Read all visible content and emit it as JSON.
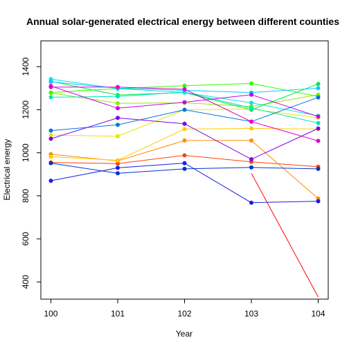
{
  "chart_data": {
    "type": "line",
    "title": "Annual solar-generated electrical energy between different counties",
    "xlabel": "Year",
    "ylabel": "Electrical energy",
    "x": [
      100,
      101,
      102,
      103,
      104
    ],
    "xlim": [
      99.85,
      104.15
    ],
    "ylim": [
      320,
      1520
    ],
    "yticks": [
      400,
      600,
      800,
      1000,
      1200,
      1400
    ],
    "grid": false,
    "legend": "none",
    "series": [
      {
        "color": "#FF0000",
        "values": [
          null,
          null,
          null,
          905,
          330
        ]
      },
      {
        "color": "#FF4000",
        "values": [
          955,
          950,
          988,
          958,
          935
        ]
      },
      {
        "color": "#FF8C00",
        "values": [
          993,
          962,
          1057,
          1057,
          787
        ]
      },
      {
        "color": "#FFCC00",
        "values": [
          982,
          965,
          1110,
          1113,
          1110
        ]
      },
      {
        "color": "#E6E600",
        "values": [
          1082,
          1077,
          1200,
          1203,
          1162
        ]
      },
      {
        "color": "#99E600",
        "values": [
          1278,
          1230,
          1232,
          1215,
          1270
        ]
      },
      {
        "color": "#33FF00",
        "values": [
          1280,
          1298,
          1312,
          1322,
          1262
        ]
      },
      {
        "color": "#00E64D",
        "values": [
          1332,
          1268,
          1280,
          1200,
          1320
        ]
      },
      {
        "color": "#00E6B3",
        "values": [
          1258,
          1262,
          1282,
          1208,
          1138
        ]
      },
      {
        "color": "#00E6E6",
        "values": [
          1342,
          1298,
          1280,
          1232,
          1172
        ]
      },
      {
        "color": "#00CCFF",
        "values": [
          1330,
          1300,
          1290,
          1280,
          1300
        ]
      },
      {
        "color": "#0073E6",
        "values": [
          1103,
          1130,
          1200,
          1145,
          1257
        ]
      },
      {
        "color": "#0033CC",
        "values": [
          952,
          905,
          925,
          932,
          925
        ]
      },
      {
        "color": "#1A1AE6",
        "values": [
          870,
          930,
          952,
          768,
          775
        ]
      },
      {
        "color": "#8000E6",
        "values": [
          1065,
          1162,
          1135,
          970,
          1113
        ]
      },
      {
        "color": "#CC00E6",
        "values": [
          1310,
          1207,
          1235,
          1270,
          1168
        ]
      },
      {
        "color": "#E600CC",
        "values": [
          1305,
          1305,
          1295,
          1145,
          1055
        ]
      }
    ]
  }
}
